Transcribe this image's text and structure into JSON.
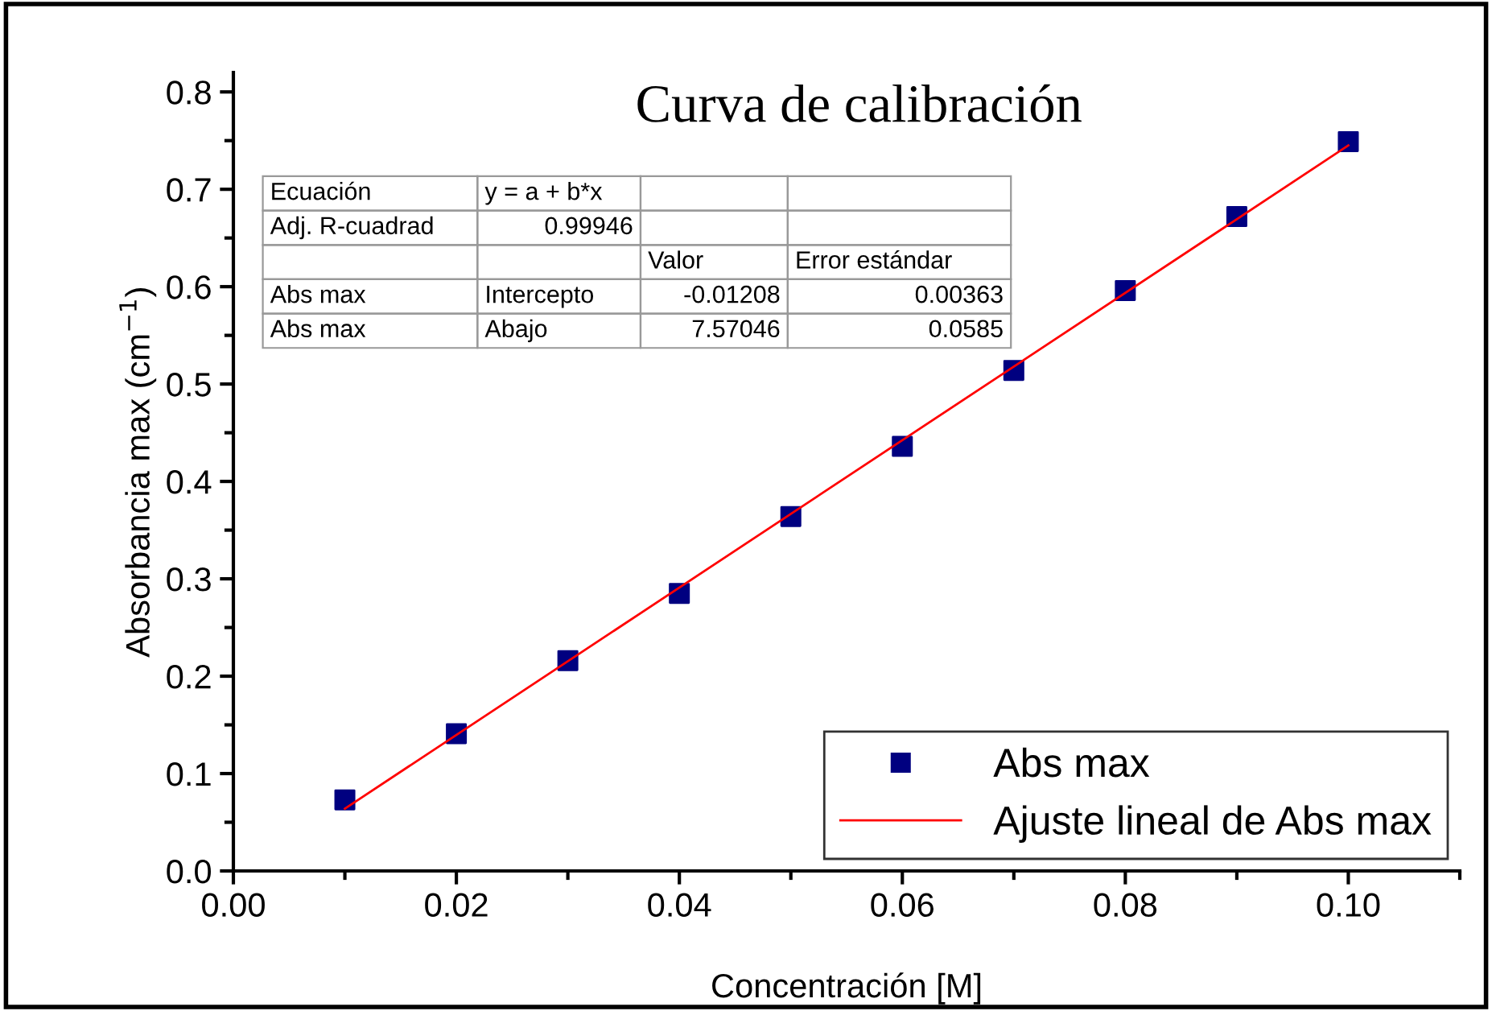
{
  "chart_data": {
    "type": "scatter",
    "title": "Curva de calibración",
    "xlabel": "Concentración [M]",
    "ylabel": "Absorbancia max (cm$^{−1}$)",
    "x": [
      0.01,
      0.02,
      0.03,
      0.04,
      0.05,
      0.06,
      0.07,
      0.08,
      0.09,
      0.1
    ],
    "series": [
      {
        "name": "Abs max",
        "color": "#000080",
        "marker": "square",
        "values": [
          0.073,
          0.141,
          0.216,
          0.285,
          0.364,
          0.436,
          0.514,
          0.596,
          0.672,
          0.749
        ]
      },
      {
        "name": "Ajuste lineal de Abs max",
        "type": "line",
        "color": "#ff0000",
        "line_style": "solid",
        "marker": "none",
        "x": [
          0.01,
          0.1
        ],
        "values": [
          0.064,
          0.745
        ]
      }
    ],
    "xlim": [
      0,
      0.11
    ],
    "ylim": [
      0,
      0.82
    ],
    "xticks": [
      {
        "value": 0,
        "label": "0.00"
      },
      {
        "value": 0.02,
        "label": "0.02"
      },
      {
        "value": 0.04,
        "label": "0.04"
      },
      {
        "value": 0.06,
        "label": "0.06"
      },
      {
        "value": 0.08,
        "label": "0.08"
      },
      {
        "value": 0.1,
        "label": "0.10"
      }
    ],
    "yticks": [
      {
        "value": 0,
        "label": "0.0"
      },
      0.1,
      0.2,
      0.3,
      0.4,
      0.5,
      0.6,
      0.7,
      0.8
    ],
    "grid": false,
    "legend": "bottom right",
    "annotations": [
      "Ecuación",
      "y = a + b*x",
      "Adj. R-cuadrad",
      "0.99946",
      "Valor",
      "Error estándar",
      "Abs max",
      "Intercepto",
      "-0.01208",
      "0.00363",
      "Abs max",
      "Abajo",
      "7.57046",
      "0.0585"
    ]
  }
}
